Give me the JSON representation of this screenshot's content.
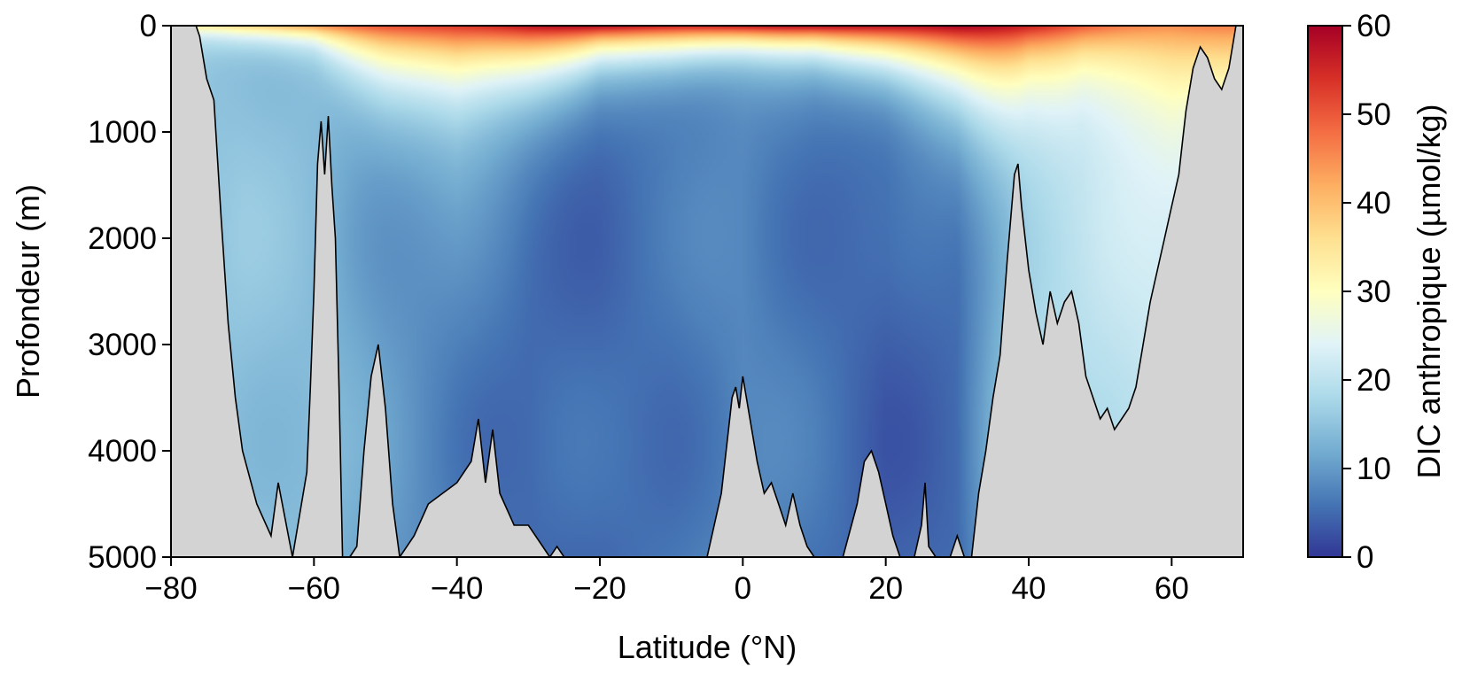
{
  "chart_data": {
    "type": "heatmap",
    "title": "",
    "xlabel": "Latitude (°N)",
    "ylabel": "Profondeur (m)",
    "xlim": [
      -80,
      70
    ],
    "ylim": [
      5000,
      0
    ],
    "x_ticks": [
      -80,
      -60,
      -40,
      -20,
      0,
      20,
      40,
      60
    ],
    "x_tick_labels": [
      "−80",
      "−60",
      "−40",
      "−20",
      "0",
      "20",
      "40",
      "60"
    ],
    "y_ticks": [
      0,
      1000,
      2000,
      3000,
      4000,
      5000
    ],
    "y_tick_labels": [
      "0",
      "1000",
      "2000",
      "3000",
      "4000",
      "5000"
    ],
    "colorbar": {
      "label": "DIC anthropique (µmol/kg)",
      "range": [
        0,
        60
      ],
      "ticks": [
        0,
        10,
        20,
        30,
        40,
        50,
        60
      ],
      "tick_labels": [
        "0",
        "10",
        "20",
        "30",
        "40",
        "50",
        "60"
      ],
      "colormap": "RdYlBu_r",
      "stops": [
        "#313695",
        "#4575b4",
        "#74add1",
        "#abd9e9",
        "#e0f3f8",
        "#ffffbf",
        "#fee090",
        "#fdae61",
        "#f46d43",
        "#d73027",
        "#a50026"
      ]
    },
    "field_description": {
      "lat": [
        -75,
        -70,
        -60,
        -50,
        -40,
        -30,
        -20,
        -10,
        0,
        10,
        20,
        30,
        40,
        50,
        60,
        65
      ],
      "surface_value": [
        35,
        40,
        45,
        50,
        55,
        58,
        58,
        58,
        58,
        58,
        60,
        60,
        55,
        50,
        45,
        45
      ],
      "ventilation_depth_at_20": [
        150,
        200,
        250,
        600,
        800,
        600,
        350,
        350,
        300,
        300,
        450,
        700,
        1200,
        1800,
        2400,
        2000
      ],
      "deep_value": [
        15,
        15,
        14,
        10,
        7,
        5,
        5,
        6,
        8,
        6,
        4,
        5,
        18,
        20,
        22,
        22
      ]
    },
    "bathymetry": {
      "lat": [
        -76.5,
        -76,
        -75,
        -74,
        -73,
        -72,
        -71,
        -70,
        -68,
        -66,
        -65,
        -63,
        -62,
        -61,
        -60.5,
        -60,
        -59.5,
        -59,
        -58.5,
        -58,
        -57.5,
        -57,
        -56.5,
        -56,
        -55,
        -54,
        -53,
        -52,
        -51,
        -50,
        -49,
        -48,
        -46,
        -44,
        -42,
        -40,
        -38,
        -37,
        -36,
        -35,
        -34,
        -32,
        -30,
        -28,
        -27,
        -26,
        -25,
        -24,
        -10,
        -5,
        -3,
        -2,
        -1.5,
        -1,
        -0.5,
        0,
        1,
        2,
        3,
        4,
        5,
        6,
        7,
        8,
        9,
        10,
        11,
        12,
        14,
        16,
        17,
        18,
        19,
        20,
        21,
        22,
        24,
        25,
        25.5,
        26,
        27,
        29,
        30,
        31,
        32,
        33,
        34,
        35,
        36,
        37,
        38,
        38.5,
        39,
        40,
        41,
        42,
        43,
        44,
        45,
        46,
        47,
        48,
        49,
        50,
        51,
        52,
        53,
        54,
        55,
        56,
        57,
        58,
        59,
        60,
        61,
        61.5,
        62,
        63,
        64,
        65,
        66,
        67,
        68,
        69
      ],
      "depth": [
        0,
        100,
        500,
        700,
        1800,
        2800,
        3500,
        4000,
        4500,
        4800,
        4300,
        5000,
        4600,
        4200,
        3400,
        2500,
        1300,
        900,
        1400,
        850,
        1500,
        2000,
        3400,
        5000,
        5000,
        4900,
        4000,
        3300,
        3000,
        3600,
        4500,
        5000,
        4800,
        4500,
        4400,
        4300,
        4100,
        3700,
        4300,
        3800,
        4400,
        4700,
        4700,
        4900,
        5000,
        4900,
        5000,
        5000,
        5000,
        5000,
        4400,
        3800,
        3500,
        3400,
        3600,
        3300,
        3700,
        4100,
        4400,
        4300,
        4500,
        4700,
        4400,
        4700,
        4900,
        5000,
        5000,
        5000,
        5000,
        4500,
        4100,
        4000,
        4200,
        4500,
        4800,
        5000,
        5000,
        4700,
        4300,
        4900,
        5000,
        5000,
        4800,
        5000,
        5000,
        4400,
        4000,
        3500,
        3100,
        2200,
        1400,
        1300,
        1700,
        2300,
        2700,
        3000,
        2500,
        2800,
        2600,
        2500,
        2800,
        3300,
        3500,
        3700,
        3600,
        3800,
        3700,
        3600,
        3400,
        3000,
        2600,
        2300,
        2000,
        1700,
        1400,
        1100,
        800,
        400,
        200,
        300,
        500,
        600,
        400,
        0
      ]
    }
  }
}
